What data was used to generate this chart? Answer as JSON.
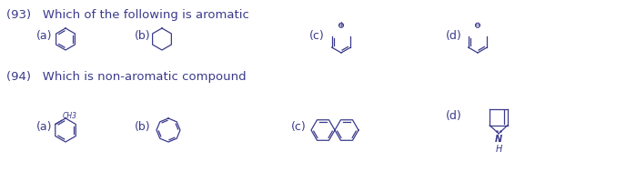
{
  "title93": "(93)   Which of the following is aromatic",
  "title94": "(94)   Which is non-aromatic compound",
  "text_color": "#3a3a8c",
  "struct_color": "#3a3a8c",
  "bg_color": "#ffffff",
  "label_a": "(a)",
  "label_b": "(b)",
  "label_c": "(c)",
  "label_d": "(d)",
  "ch3_label": "CH3",
  "h_label": "H",
  "n_label": "N",
  "font_size_question": 9.5,
  "font_size_label": 9,
  "font_size_small": 6
}
